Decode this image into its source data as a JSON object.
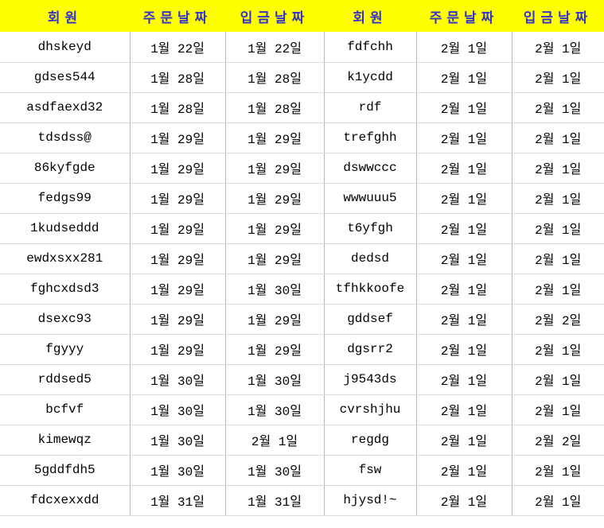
{
  "table": {
    "colors": {
      "header_bg": "#ffff00",
      "header_text": "#3333cc",
      "gridline_vertical": "#b9b9b9",
      "gridline_horizontal": "#d9d9d9"
    },
    "headers": [
      "회원",
      "주문날짜",
      "입금날짜",
      "회원",
      "주문날짜",
      "입금날짜"
    ],
    "rows": [
      [
        "dhskeyd",
        "1월 22일",
        "1월 22일",
        "fdfchh",
        "2월 1일",
        "2월 1일"
      ],
      [
        "gdses544",
        "1월 28일",
        "1월 28일",
        "k1ycdd",
        "2월 1일",
        "2월 1일"
      ],
      [
        "asdfaexd32",
        "1월 28일",
        "1월 28일",
        "rdf",
        "2월 1일",
        "2월 1일"
      ],
      [
        "tdsdss@",
        "1월 29일",
        "1월 29일",
        "trefghh",
        "2월 1일",
        "2월 1일"
      ],
      [
        "86kyfgde",
        "1월 29일",
        "1월 29일",
        "dswwccc",
        "2월 1일",
        "2월 1일"
      ],
      [
        "fedgs99",
        "1월 29일",
        "1월 29일",
        "wwwuuu5",
        "2월 1일",
        "2월 1일"
      ],
      [
        "1kudseddd",
        "1월 29일",
        "1월 29일",
        "t6yfgh",
        "2월 1일",
        "2월 1일"
      ],
      [
        "ewdxsxx281",
        "1월 29일",
        "1월 29일",
        "dedsd",
        "2월 1일",
        "2월 1일"
      ],
      [
        "fghcxdsd3",
        "1월 29일",
        "1월 30일",
        "tfhkkoofe",
        "2월 1일",
        "2월 1일"
      ],
      [
        "dsexc93",
        "1월 29일",
        "1월 29일",
        "gddsef",
        "2월 1일",
        "2월 2일"
      ],
      [
        "fgyyy",
        "1월 29일",
        "1월 29일",
        "dgsrr2",
        "2월 1일",
        "2월 1일"
      ],
      [
        "rddsed5",
        "1월 30일",
        "1월 30일",
        "j9543ds",
        "2월 1일",
        "2월 1일"
      ],
      [
        "bcfvf",
        "1월 30일",
        "1월 30일",
        "cvrshjhu",
        "2월 1일",
        "2월 1일"
      ],
      [
        "kimewqz",
        "1월 30일",
        "2월 1일",
        "regdg",
        "2월 1일",
        "2월 2일"
      ],
      [
        "5gddfdh5",
        "1월 30일",
        "1월 30일",
        "fsw",
        "2월 1일",
        "2월 1일"
      ],
      [
        "fdcxexxdd",
        "1월 31일",
        "1월 31일",
        "hjysd!~",
        "2월 1일",
        "2월 1일"
      ]
    ]
  }
}
